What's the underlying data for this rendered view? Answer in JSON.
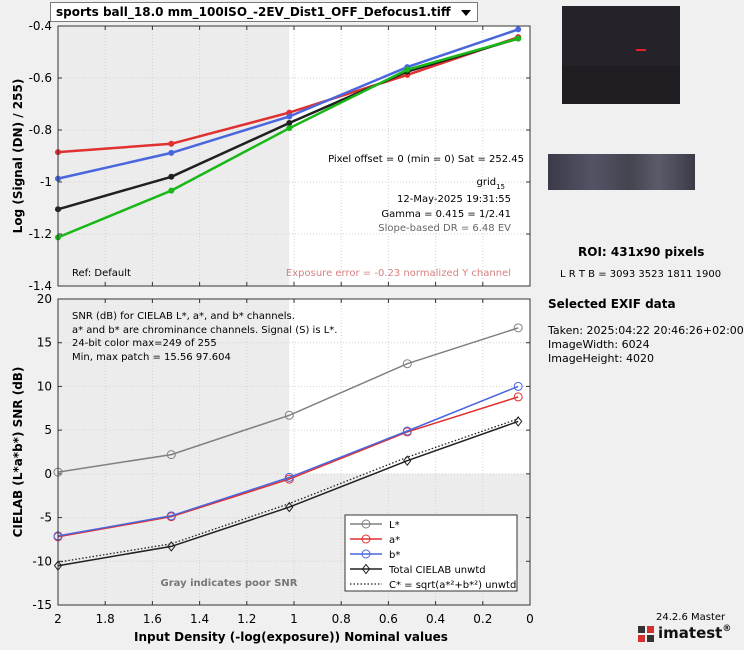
{
  "file_dropdown": {
    "selected": "sports ball_18.0 mm_100ISO_-2EV_Dist1_OFF_Defocus1.tiff"
  },
  "roi": {
    "title": "ROI:  431x90 pixels",
    "coords": "L R  T B = 3093 3523  1811 1900"
  },
  "exif": {
    "title": "Selected EXIF data",
    "taken": "Taken: 2025:04:22 20:46:26+02:00",
    "width": "ImageWidth:  6024",
    "height": "ImageHeight:  4020"
  },
  "version": "24.2.6 Master",
  "logo": {
    "text": "imatest",
    "reg": "®",
    "accent": "#d43030"
  },
  "colors": {
    "red": "#e03030",
    "blue": "#4a66dd",
    "green": "#18b818",
    "black": "#202020",
    "gray": "#808080",
    "poor_region": "#ececec"
  },
  "chart_data": [
    {
      "type": "line",
      "title": "",
      "xlabel": "",
      "ylabel": "Log (Signal (DN) / 255)",
      "xlim": [
        2.0,
        0.0
      ],
      "ylim": [
        -1.4,
        -0.4
      ],
      "yticks": [
        -1.4,
        -1.2,
        -1,
        -0.8,
        -0.6,
        -0.4
      ],
      "ytick_labels": [
        "-1.4",
        "-1.2",
        "-1",
        "-0.8",
        "-0.6",
        "-0.4"
      ],
      "grid": true,
      "gray_region_x": [
        2.0,
        1.02
      ],
      "x": [
        2.0,
        1.52,
        1.02,
        0.52,
        0.05
      ],
      "series": [
        {
          "color": "red",
          "values": [
            -0.885,
            -0.853,
            -0.733,
            -0.588,
            -0.443
          ]
        },
        {
          "color": "blue",
          "values": [
            -0.987,
            -0.888,
            -0.748,
            -0.558,
            -0.413
          ]
        },
        {
          "color": "black",
          "values": [
            -1.105,
            -0.98,
            -0.773,
            -0.575,
            -0.448
          ]
        },
        {
          "color": "green",
          "values": [
            -1.213,
            -1.033,
            -0.793,
            -0.568,
            -0.448
          ]
        }
      ],
      "annotations": {
        "pixel_offset": "Pixel offset = 0  (min = 0)  Sat = 252.45",
        "grid": "grid",
        "grid_sub": "15",
        "date": "12-May-2025 19:31:55",
        "gamma": "Gamma = 0.415 = 1/2.41",
        "slope_dr": "Slope-based DR = 6.48 EV",
        "ref": "Ref: Default",
        "exposure_error": "Exposure error = -0.23 normalized Y channel"
      }
    },
    {
      "type": "line",
      "title": "",
      "xlabel": "Input Density (-log(exposure))   Nominal values",
      "ylabel": "CIELAB (L*a*b*)  SNR (dB)",
      "xlim": [
        2.0,
        0.0
      ],
      "ylim": [
        -15,
        20
      ],
      "xticks": [
        2,
        1.8,
        1.6,
        1.4,
        1.2,
        1,
        0.8,
        0.6,
        0.4,
        0.2,
        0
      ],
      "xtick_labels": [
        "2",
        "1.8",
        "1.6",
        "1.4",
        "1.2",
        "1",
        "0.8",
        "0.6",
        "0.4",
        "0.2",
        "0"
      ],
      "yticks": [
        -15,
        -10,
        -5,
        0,
        5,
        10,
        15,
        20
      ],
      "ytick_labels": [
        "-15",
        "-10",
        "-5",
        "0",
        "5",
        "10",
        "15",
        "20"
      ],
      "grid": true,
      "gray_region_x": [
        2.0,
        1.02
      ],
      "gray_region_y": [
        -15,
        0
      ],
      "x": [
        2.0,
        1.52,
        1.02,
        0.52,
        0.05
      ],
      "legend_position": "bottom-right",
      "series": [
        {
          "name": "L*",
          "color": "gray",
          "marker": "circle",
          "values": [
            0.2,
            2.2,
            6.7,
            12.6,
            16.7
          ]
        },
        {
          "name": "a*",
          "color": "red",
          "marker": "circle",
          "values": [
            -7.2,
            -4.9,
            -0.6,
            4.8,
            8.8
          ]
        },
        {
          "name": "b*",
          "color": "blue",
          "marker": "circle",
          "values": [
            -7.1,
            -4.8,
            -0.4,
            4.9,
            10.0
          ]
        },
        {
          "name": "Total CIELAB unwtd",
          "color": "black",
          "marker": "diamond",
          "values": [
            -10.5,
            -8.3,
            -3.8,
            1.5,
            6.0
          ]
        },
        {
          "name": "C* = sqrt(a*²+b*²) unwtd",
          "color": "black",
          "dotted": true,
          "values": [
            -10.1,
            -8.0,
            -3.4,
            1.9,
            6.3
          ]
        }
      ],
      "annotations": {
        "line1": "SNR (dB) for CIELAB L*, a*, and b* channels.",
        "line2": "a* and b* are chrominance channels. Signal (S) is L*.",
        "line3": "24-bit color  max=249 of 255",
        "line4": "Min, max patch = 15.56  97.604",
        "poor": "Gray indicates poor SNR"
      }
    }
  ]
}
